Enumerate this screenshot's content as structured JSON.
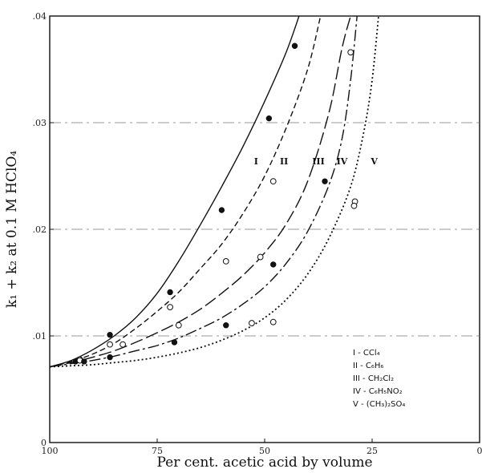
{
  "chart_data": {
    "type": "line",
    "xlabel": "Per cent. acetic acid by volume",
    "ylabel": "k₁ + k₂ at 0.1 M HClO₄",
    "xlim": [
      100,
      0
    ],
    "ylim": [
      0,
      0.04
    ],
    "x_ticks": [
      {
        "value": 100,
        "label": "100"
      },
      {
        "value": 75,
        "label": "75"
      },
      {
        "value": 50,
        "label": "50"
      },
      {
        "value": 25,
        "label": "25"
      },
      {
        "value": 0,
        "label": "0"
      }
    ],
    "y_ticks": [
      {
        "value": 0,
        "label": "0"
      },
      {
        "value": 0.01,
        "label": ".01"
      },
      {
        "value": 0.02,
        "label": ".02"
      },
      {
        "value": 0.03,
        "label": ".03"
      },
      {
        "value": 0.04,
        "label": ".04"
      }
    ],
    "grid": "horizontal dashed",
    "series": [
      {
        "name": "I",
        "legend": "I - CCl₄",
        "dash": "solid",
        "marker": "filled",
        "curve": [
          [
            100,
            0.0071
          ],
          [
            95,
            0.0077
          ],
          [
            90,
            0.0087
          ],
          [
            85,
            0.01
          ],
          [
            80,
            0.0117
          ],
          [
            75,
            0.014
          ],
          [
            70,
            0.017
          ],
          [
            65,
            0.0204
          ],
          [
            60,
            0.024
          ],
          [
            55,
            0.0278
          ],
          [
            50,
            0.032
          ],
          [
            45,
            0.0366
          ],
          [
            42,
            0.04
          ]
        ],
        "points": [
          [
            94,
            0.0076
          ],
          [
            86,
            0.0101
          ],
          [
            72,
            0.0141
          ],
          [
            60,
            0.0218
          ],
          [
            49,
            0.0304
          ],
          [
            43,
            0.0372
          ]
        ]
      },
      {
        "name": "II",
        "legend": "II - C₆H₆",
        "dash": "dashed",
        "marker": "open",
        "curve": [
          [
            100,
            0.0071
          ],
          [
            95,
            0.0076
          ],
          [
            90,
            0.0083
          ],
          [
            85,
            0.0093
          ],
          [
            80,
            0.0107
          ],
          [
            75,
            0.0123
          ],
          [
            70,
            0.0141
          ],
          [
            65,
            0.0163
          ],
          [
            60,
            0.0186
          ],
          [
            55,
            0.0215
          ],
          [
            50,
            0.025
          ],
          [
            45,
            0.0295
          ],
          [
            40,
            0.035
          ],
          [
            37,
            0.04
          ]
        ],
        "points": [
          [
            93,
            0.0078
          ],
          [
            86,
            0.0092
          ],
          [
            72,
            0.0127
          ],
          [
            59,
            0.017
          ],
          [
            48,
            0.0245
          ]
        ]
      },
      {
        "name": "III",
        "legend": "III - CH₂Cl₂",
        "dash": "long-dash",
        "marker": "open",
        "curve": [
          [
            100,
            0.0071
          ],
          [
            95,
            0.0075
          ],
          [
            90,
            0.008
          ],
          [
            85,
            0.0086
          ],
          [
            80,
            0.0094
          ],
          [
            75,
            0.0103
          ],
          [
            70,
            0.0113
          ],
          [
            65,
            0.0125
          ],
          [
            60,
            0.014
          ],
          [
            55,
            0.0157
          ],
          [
            50,
            0.0178
          ],
          [
            45,
            0.0205
          ],
          [
            40,
            0.0245
          ],
          [
            35,
            0.031
          ],
          [
            32,
            0.037
          ],
          [
            30,
            0.04
          ]
        ],
        "points": [
          [
            93,
            0.0077
          ],
          [
            83,
            0.0092
          ],
          [
            70,
            0.011
          ],
          [
            51,
            0.0174
          ],
          [
            30,
            0.0366
          ]
        ]
      },
      {
        "name": "IV",
        "legend": "IV - C₆H₅NO₂",
        "dash": "dash-dot",
        "marker": "filled",
        "curve": [
          [
            100,
            0.0071
          ],
          [
            95,
            0.0074
          ],
          [
            90,
            0.0077
          ],
          [
            85,
            0.0081
          ],
          [
            80,
            0.0086
          ],
          [
            75,
            0.0091
          ],
          [
            70,
            0.0098
          ],
          [
            65,
            0.0107
          ],
          [
            60,
            0.0117
          ],
          [
            55,
            0.013
          ],
          [
            50,
            0.0146
          ],
          [
            45,
            0.0168
          ],
          [
            40,
            0.0198
          ],
          [
            35,
            0.0242
          ],
          [
            32,
            0.0285
          ],
          [
            30,
            0.034
          ],
          [
            28.5,
            0.04
          ]
        ],
        "points": [
          [
            92,
            0.0076
          ],
          [
            86,
            0.008
          ],
          [
            71,
            0.0094
          ],
          [
            59,
            0.011
          ],
          [
            48,
            0.0167
          ],
          [
            36,
            0.0245
          ]
        ]
      },
      {
        "name": "V",
        "legend": "V - (CH₃)₂SO₄",
        "dash": "dotted",
        "marker": "open",
        "curve": [
          [
            100,
            0.0071
          ],
          [
            95,
            0.0072
          ],
          [
            90,
            0.0073
          ],
          [
            85,
            0.0075
          ],
          [
            80,
            0.0077
          ],
          [
            75,
            0.008
          ],
          [
            70,
            0.0084
          ],
          [
            65,
            0.0089
          ],
          [
            60,
            0.0096
          ],
          [
            55,
            0.0105
          ],
          [
            50,
            0.0117
          ],
          [
            45,
            0.0134
          ],
          [
            40,
            0.0158
          ],
          [
            35,
            0.0192
          ],
          [
            30,
            0.024
          ],
          [
            27,
            0.029
          ],
          [
            25,
            0.034
          ],
          [
            23.5,
            0.04
          ]
        ],
        "points": [
          [
            53,
            0.0112
          ],
          [
            48,
            0.0113
          ],
          [
            29,
            0.0226
          ],
          [
            29.2,
            0.0222
          ]
        ]
      }
    ],
    "curve_labels": [
      {
        "text": "I",
        "x": 52,
        "y": 0.0261
      },
      {
        "text": "II",
        "x": 45.5,
        "y": 0.0261
      },
      {
        "text": "III",
        "x": 37.5,
        "y": 0.0261
      },
      {
        "text": "IV",
        "x": 32,
        "y": 0.0261
      },
      {
        "text": "V",
        "x": 24.5,
        "y": 0.0261
      }
    ],
    "legend_position": "lower-right",
    "legend_entries": [
      "I - CCl₄",
      "II - C₆H₆",
      "III - CH₂Cl₂",
      "IV - C₆H₅NO₂",
      "V - (CH₃)₂SO₄"
    ]
  }
}
